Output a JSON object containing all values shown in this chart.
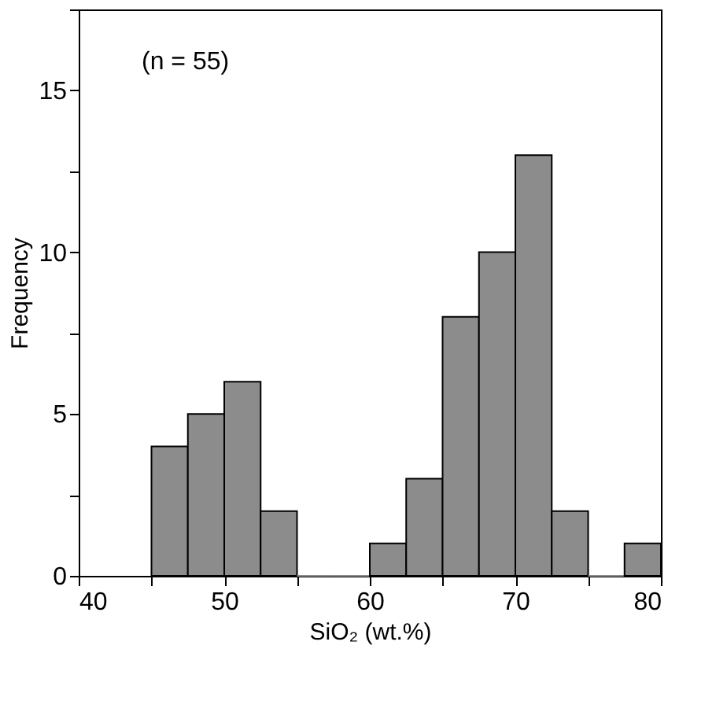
{
  "chart_data": {
    "type": "histogram",
    "bins": [
      45,
      47.5,
      50,
      52.5,
      55,
      57.5,
      60,
      62.5,
      65,
      67.5,
      70,
      72.5,
      75,
      77.5,
      80
    ],
    "values": [
      4,
      5,
      6,
      2,
      0,
      0,
      1,
      3,
      8,
      10,
      13,
      2,
      0,
      1
    ],
    "color": "#8c8c8c",
    "xlabel": "SiO₂ (wt.%)",
    "ylabel": "Frequency",
    "annotations": [
      "(n = 55)"
    ],
    "xlim": [
      40,
      80
    ],
    "xticks": [
      40,
      {
        "value": 45,
        "label": null
      },
      50,
      {
        "value": 55,
        "label": null
      },
      60,
      {
        "value": 65,
        "label": null
      },
      70,
      {
        "value": 75,
        "label": null
      },
      80
    ],
    "ylim": [
      0,
      17.5
    ],
    "yticks": [
      0,
      {
        "value": 2.5,
        "label": null
      },
      5,
      {
        "value": 7.5,
        "label": null
      },
      10,
      {
        "value": 12.5,
        "label": null
      },
      15,
      {
        "value": 17.5,
        "label": null
      }
    ],
    "grid": false
  }
}
